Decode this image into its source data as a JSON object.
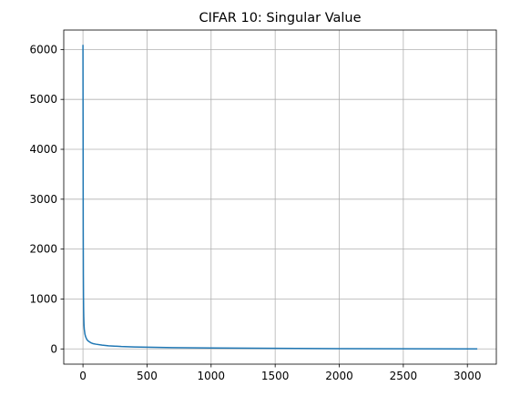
{
  "chart_data": {
    "type": "line",
    "title": "CIFAR 10: Singular Value",
    "xlabel": "",
    "ylabel": "",
    "xlim": [
      -150,
      3226
    ],
    "ylim": [
      -305,
      6390
    ],
    "xticks": [
      0,
      500,
      1000,
      1500,
      2000,
      2500,
      3000
    ],
    "yticks": [
      0,
      1000,
      2000,
      3000,
      4000,
      5000,
      6000
    ],
    "xtick_labels": [
      "0",
      "500",
      "1000",
      "1500",
      "2000",
      "2500",
      "3000"
    ],
    "ytick_labels": [
      "0",
      "1000",
      "2000",
      "3000",
      "4000",
      "5000",
      "6000"
    ],
    "grid": true,
    "series": [
      {
        "color": "#1f77b4",
        "x": [
          0,
          1,
          2,
          3,
          4,
          5,
          6,
          8,
          10,
          15,
          20,
          30,
          40,
          60,
          80,
          100,
          150,
          200,
          300,
          400,
          500,
          700,
          1000,
          1500,
          2000,
          2500,
          3000,
          3072
        ],
        "y": [
          6080,
          4200,
          2400,
          1500,
          1050,
          800,
          650,
          480,
          400,
          300,
          250,
          190,
          160,
          125,
          105,
          95,
          75,
          62,
          48,
          40,
          34,
          26,
          18,
          11,
          6,
          3,
          1,
          0
        ]
      }
    ]
  }
}
